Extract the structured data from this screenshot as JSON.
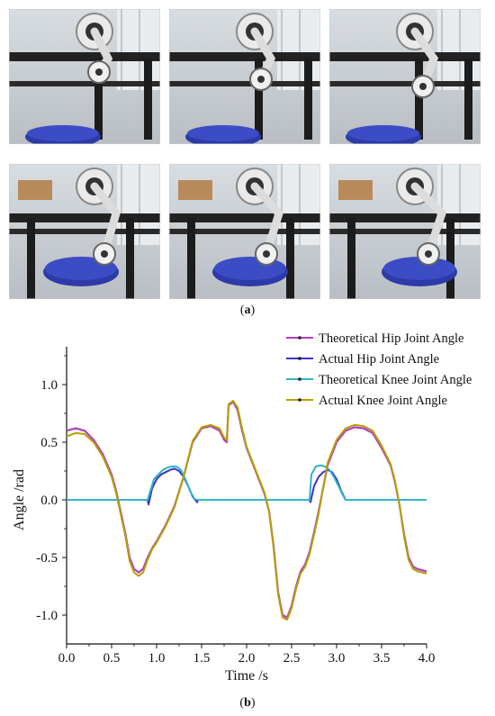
{
  "photos": [
    {
      "id": "p1"
    },
    {
      "id": "p2"
    },
    {
      "id": "p3"
    },
    {
      "id": "p4"
    },
    {
      "id": "p5"
    },
    {
      "id": "p6"
    }
  ],
  "captions": {
    "top": "(a)",
    "bottom": "(b)",
    "top_letter": "a",
    "bottom_letter": "b"
  },
  "colors": {
    "theoretical_hip": "#b03fbf",
    "actual_hip": "#3a33c8",
    "theoretical_knee": "#2fb5c8",
    "actual_knee": "#b5a000",
    "markers": "#1a1a1a"
  },
  "chart_data": {
    "type": "line",
    "xlabel": "Time /s",
    "ylabel": "Angle /rad",
    "xlim": [
      0.0,
      4.0
    ],
    "ylim": [
      -1.25,
      1.25
    ],
    "xticks": [
      "0.0",
      "0.5",
      "1.0",
      "1.5",
      "2.0",
      "2.5",
      "3.0",
      "3.5",
      "4.0"
    ],
    "yticks": [
      "-1.0",
      "-0.5",
      "0.0",
      "0.5",
      "1.0"
    ],
    "legend_position": "top-right",
    "series": [
      {
        "name": "Theoretical Hip Joint Angle",
        "x": [
          0.0,
          0.1,
          0.2,
          0.3,
          0.4,
          0.5,
          0.55,
          0.6,
          0.65,
          0.7,
          0.75,
          0.8,
          0.85,
          0.9,
          0.95,
          1.0,
          1.1,
          1.2,
          1.3,
          1.4,
          1.5,
          1.6,
          1.7,
          1.75,
          1.78,
          1.8,
          1.85,
          1.9,
          1.95,
          2.0,
          2.05,
          2.1,
          2.15,
          2.2,
          2.25,
          2.3,
          2.35,
          2.4,
          2.45,
          2.5,
          2.55,
          2.6,
          2.65,
          2.7,
          2.75,
          2.8,
          2.85,
          2.9,
          3.0,
          3.1,
          3.2,
          3.3,
          3.4,
          3.5,
          3.6,
          3.65,
          3.7,
          3.75,
          3.8,
          3.85,
          3.9,
          3.95,
          4.0
        ],
        "y": [
          0.6,
          0.62,
          0.6,
          0.52,
          0.4,
          0.22,
          0.08,
          -0.1,
          -0.28,
          -0.5,
          -0.6,
          -0.63,
          -0.6,
          -0.5,
          -0.42,
          -0.36,
          -0.22,
          -0.05,
          0.2,
          0.5,
          0.62,
          0.64,
          0.6,
          0.52,
          0.5,
          0.82,
          0.85,
          0.78,
          0.6,
          0.45,
          0.35,
          0.25,
          0.15,
          0.05,
          -0.1,
          -0.4,
          -0.8,
          -1.0,
          -1.02,
          -0.92,
          -0.75,
          -0.62,
          -0.56,
          -0.45,
          -0.28,
          -0.1,
          0.1,
          0.3,
          0.5,
          0.6,
          0.63,
          0.62,
          0.58,
          0.45,
          0.3,
          0.15,
          -0.05,
          -0.3,
          -0.5,
          -0.58,
          -0.6,
          -0.61,
          -0.62
        ]
      },
      {
        "name": "Actual Hip Joint Angle",
        "x": [
          0.0,
          0.9,
          0.91,
          0.95,
          1.0,
          1.05,
          1.1,
          1.15,
          1.2,
          1.25,
          1.3,
          1.35,
          1.4,
          1.45,
          1.46,
          2.7,
          2.71,
          2.75,
          2.8,
          2.85,
          2.9,
          2.95,
          3.0,
          3.05,
          3.1,
          3.11,
          4.0
        ],
        "y": [
          0.0,
          0.0,
          -0.04,
          0.1,
          0.18,
          0.22,
          0.24,
          0.26,
          0.27,
          0.25,
          0.2,
          0.12,
          0.03,
          -0.02,
          0.0,
          0.0,
          -0.02,
          0.12,
          0.2,
          0.24,
          0.26,
          0.24,
          0.18,
          0.08,
          0.0,
          0.0,
          0.0
        ]
      },
      {
        "name": "Theoretical Knee Joint Angle",
        "x": [
          0.0,
          0.9,
          0.92,
          0.97,
          1.02,
          1.07,
          1.12,
          1.17,
          1.22,
          1.27,
          1.32,
          1.37,
          1.42,
          1.45,
          2.7,
          2.72,
          2.77,
          2.82,
          2.87,
          2.92,
          2.97,
          3.02,
          3.07,
          3.1,
          4.0
        ],
        "y": [
          0.0,
          0.0,
          0.05,
          0.18,
          0.22,
          0.26,
          0.28,
          0.29,
          0.29,
          0.26,
          0.18,
          0.08,
          0.01,
          0.0,
          0.0,
          0.22,
          0.29,
          0.3,
          0.29,
          0.26,
          0.2,
          0.12,
          0.04,
          0.0,
          0.0
        ]
      },
      {
        "name": "Actual Knee Joint Angle",
        "x": [
          0.0,
          0.1,
          0.2,
          0.3,
          0.4,
          0.5,
          0.55,
          0.6,
          0.65,
          0.7,
          0.75,
          0.8,
          0.85,
          0.9,
          0.95,
          1.0,
          1.1,
          1.2,
          1.3,
          1.4,
          1.5,
          1.6,
          1.7,
          1.75,
          1.78,
          1.8,
          1.85,
          1.9,
          1.95,
          2.0,
          2.05,
          2.1,
          2.15,
          2.2,
          2.25,
          2.3,
          2.35,
          2.4,
          2.45,
          2.5,
          2.55,
          2.6,
          2.65,
          2.7,
          2.75,
          2.8,
          2.85,
          2.9,
          3.0,
          3.1,
          3.2,
          3.3,
          3.4,
          3.5,
          3.6,
          3.65,
          3.7,
          3.75,
          3.8,
          3.85,
          3.9,
          3.95,
          4.0
        ],
        "y": [
          0.55,
          0.58,
          0.57,
          0.5,
          0.38,
          0.2,
          0.06,
          -0.12,
          -0.3,
          -0.53,
          -0.63,
          -0.66,
          -0.63,
          -0.52,
          -0.43,
          -0.37,
          -0.23,
          -0.06,
          0.2,
          0.51,
          0.63,
          0.65,
          0.62,
          0.54,
          0.52,
          0.83,
          0.86,
          0.8,
          0.62,
          0.46,
          0.36,
          0.26,
          0.16,
          0.06,
          -0.1,
          -0.42,
          -0.82,
          -1.02,
          -1.04,
          -0.94,
          -0.77,
          -0.64,
          -0.58,
          -0.47,
          -0.3,
          -0.12,
          0.1,
          0.32,
          0.52,
          0.62,
          0.65,
          0.64,
          0.6,
          0.47,
          0.31,
          0.16,
          -0.05,
          -0.32,
          -0.52,
          -0.6,
          -0.62,
          -0.63,
          -0.64
        ]
      }
    ]
  }
}
